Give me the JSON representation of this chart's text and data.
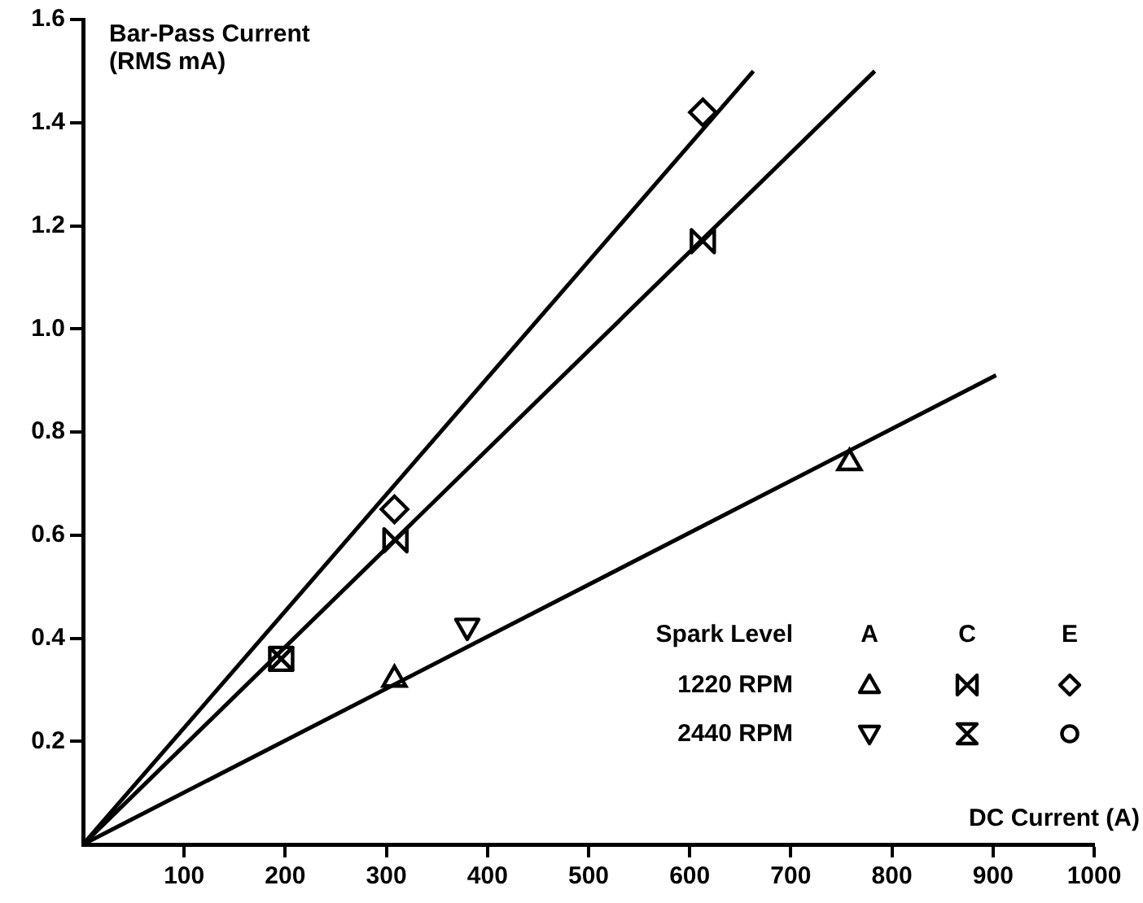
{
  "chart_data": {
    "type": "scatter",
    "xlabel": "DC Current (A)",
    "ylabel": "Bar-Pass Current\n(RMS mA)",
    "legend_title": "Spark Level",
    "annotations": [
      "A",
      "C",
      "E",
      "1220 RPM",
      "2440 RPM"
    ],
    "xlim": [
      0,
      1000
    ],
    "xticks": [
      100,
      200,
      300,
      400,
      500,
      600,
      700,
      800,
      900,
      1000
    ],
    "ylim": [
      0,
      1.6
    ],
    "yticks": [
      0.2,
      0.4,
      0.6,
      0.8,
      {
        "value": 1,
        "label": "1.0"
      },
      1.2,
      1.4,
      1.6
    ],
    "grid": false,
    "series": [
      {
        "type": "line",
        "color": "#000000",
        "marker": "none",
        "x": [
          0,
          663
        ],
        "values": [
          0,
          1.5
        ]
      },
      {
        "type": "line",
        "color": "#000000",
        "marker": "none",
        "x": [
          0,
          783
        ],
        "values": [
          0,
          1.5
        ]
      },
      {
        "type": "line",
        "color": "#000000",
        "marker": "none",
        "x": [
          0,
          903
        ],
        "values": [
          0,
          0.91
        ]
      },
      {
        "type": "scatter",
        "color": "#000000",
        "marker": "triangle",
        "x": [
          308,
          758
        ],
        "values": [
          0.32,
          0.74
        ]
      },
      {
        "type": "scatter",
        "color": "#000000",
        "x": [
          196,
          309,
          613
        ],
        "values": [
          0.36,
          0.59,
          1.17
        ]
      },
      {
        "type": "scatter",
        "color": "#000000",
        "marker": "diamond",
        "x": [
          308,
          613
        ],
        "values": [
          0.65,
          1.42
        ]
      },
      {
        "type": "scatter",
        "color": "#000000",
        "x": [
          380
        ],
        "values": [
          0.42
        ]
      },
      {
        "type": "scatter",
        "color": "#000000",
        "x": [
          196
        ],
        "values": [
          0.36
        ]
      },
      {
        "type": "scatter",
        "color": "#000000",
        "marker": "circle"
      }
    ]
  }
}
